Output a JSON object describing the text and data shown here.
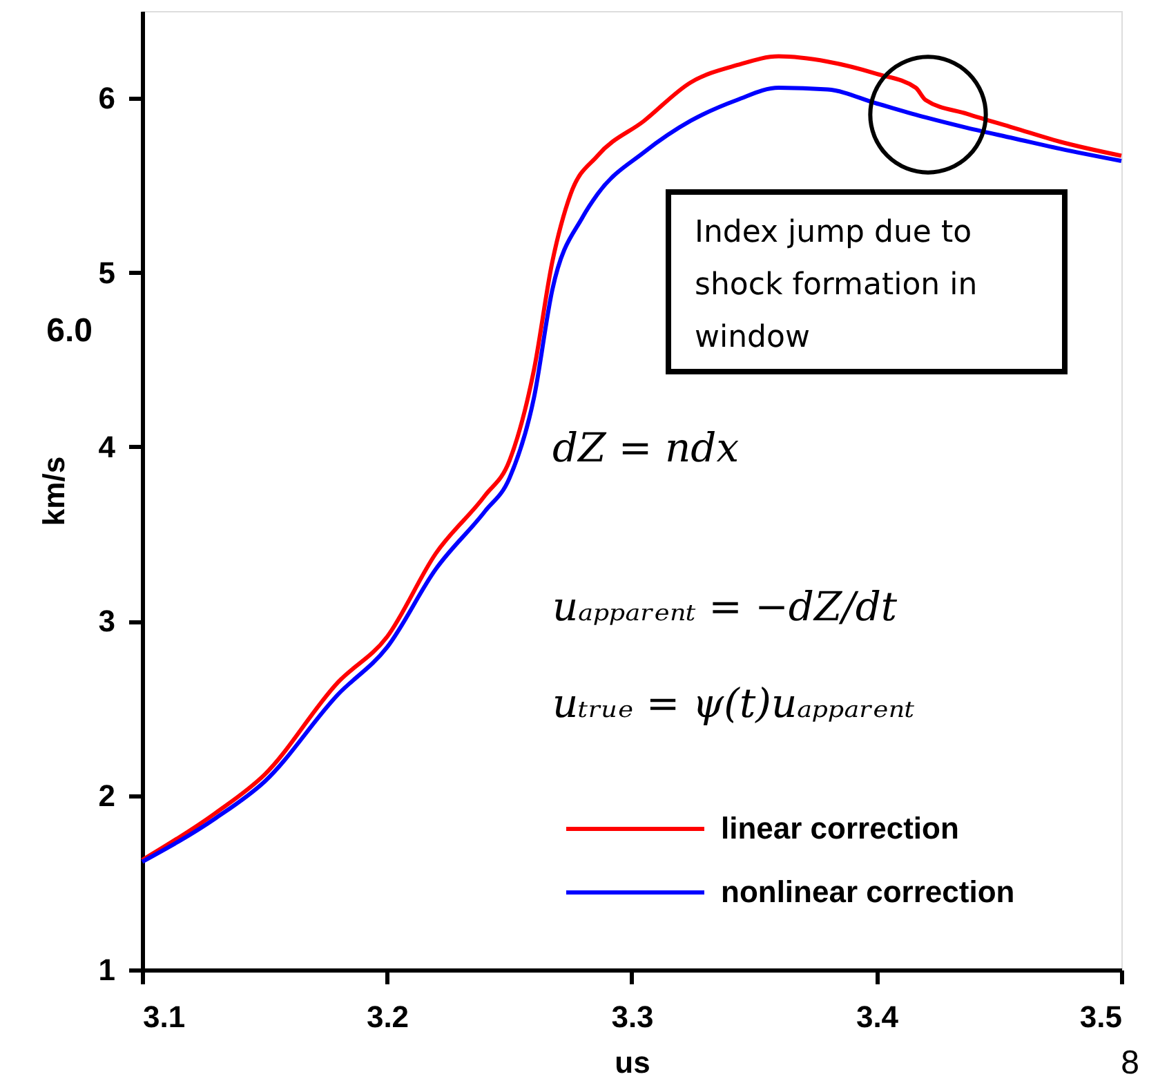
{
  "chart_data": {
    "type": "line",
    "xlabel": "us",
    "ylabel": "km/s",
    "xlim": [
      3.1,
      3.5
    ],
    "xticks": [
      3.1,
      3.2,
      3.3,
      3.4,
      3.5
    ],
    "ylim": [
      1,
      6.5
    ],
    "yticks": [
      1,
      2,
      3,
      4,
      5,
      6
    ],
    "grid": false,
    "legend": "bottom right",
    "marker": "none",
    "line_style": "solid",
    "series": [
      {
        "name": "linear correction",
        "color": "#ff0000",
        "x": [
          3.1,
          3.13,
          3.15,
          3.18,
          3.2,
          3.22,
          3.24,
          3.25,
          3.26,
          3.2675,
          3.275,
          3.286,
          3.305,
          3.324,
          3.343,
          3.36,
          3.38,
          3.4,
          3.416,
          3.42,
          3.437,
          3.456,
          3.475,
          3.5
        ],
        "values": [
          1.63,
          1.9,
          2.12,
          2.65,
          2.91,
          3.39,
          3.72,
          3.92,
          4.44,
          5.06,
          5.45,
          5.67,
          5.87,
          6.09,
          6.19,
          6.24,
          6.21,
          6.14,
          6.06,
          5.99,
          5.91,
          5.83,
          5.75,
          5.67
        ]
      },
      {
        "name": "nonlinear correction",
        "color": "#0000ff",
        "x": [
          3.1,
          3.13,
          3.15,
          3.18,
          3.2,
          3.22,
          3.24,
          3.25,
          3.26,
          3.2675,
          3.28,
          3.286,
          3.305,
          3.324,
          3.343,
          3.36,
          3.38,
          3.4,
          3.42,
          3.437,
          3.456,
          3.475,
          3.5
        ],
        "values": [
          1.62,
          1.87,
          2.08,
          2.58,
          2.85,
          3.3,
          3.63,
          3.82,
          4.28,
          4.9,
          5.32,
          5.45,
          5.69,
          5.87,
          5.99,
          6.06,
          6.05,
          5.97,
          5.89,
          5.83,
          5.77,
          5.71,
          5.64
        ]
      }
    ],
    "annotations": [
      "Index jump due to shock formation in window",
      "dZ = ndx",
      "uₐₚₚₐᵣₑₙₜ = −dZ/dt",
      "uₜᵣᵤₑ = ψ(t)uₐₚₚₐᵣₑₙₜ",
      "6.0",
      "8"
    ]
  }
}
